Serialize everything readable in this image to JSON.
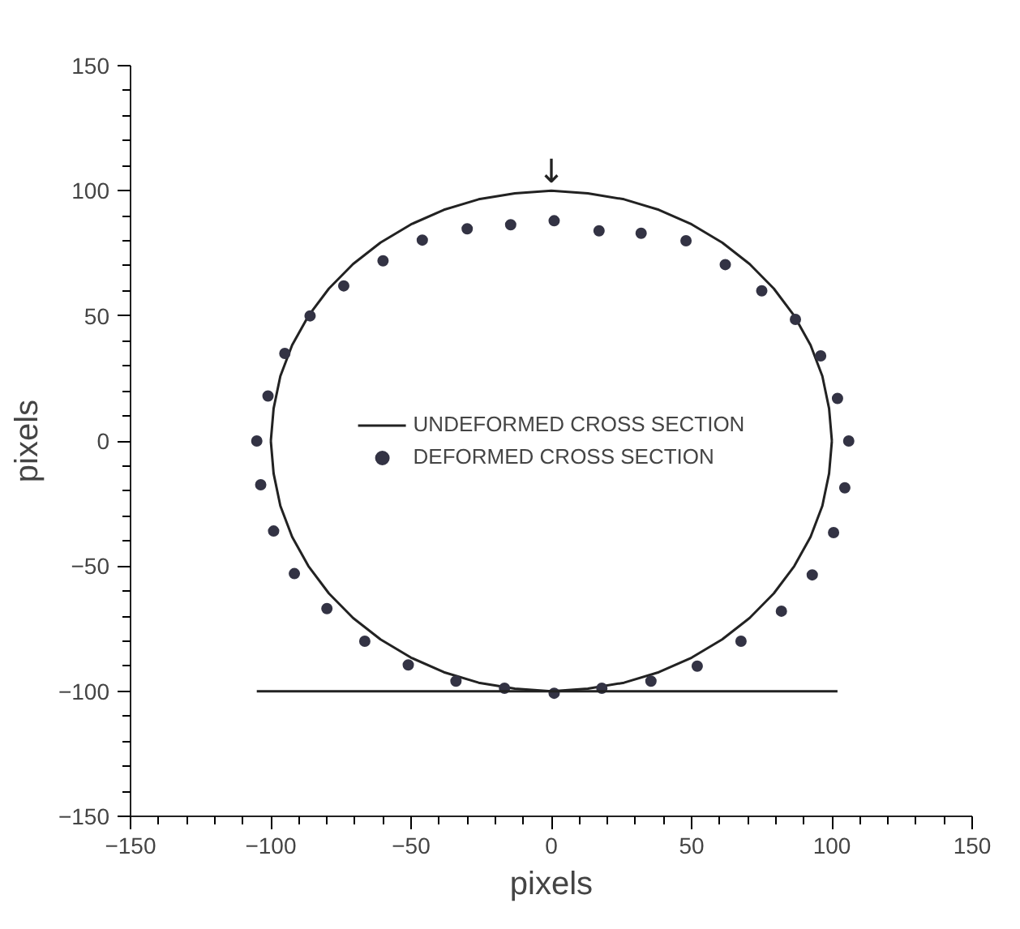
{
  "chart_data": {
    "type": "scatter",
    "xlabel": "pixels",
    "ylabel": "pixels",
    "xlim": [
      -150,
      150
    ],
    "ylim": [
      -150,
      150
    ],
    "xticks": [
      -150,
      {
        "value": -140,
        "label": null
      },
      {
        "value": -130,
        "label": null
      },
      {
        "value": -120,
        "label": null
      },
      {
        "value": -110,
        "label": null
      },
      -100,
      {
        "value": -90,
        "label": null
      },
      {
        "value": -80,
        "label": null
      },
      {
        "value": -70,
        "label": null
      },
      {
        "value": -60,
        "label": null
      },
      -50,
      {
        "value": -40,
        "label": null
      },
      {
        "value": -30,
        "label": null
      },
      {
        "value": -20,
        "label": null
      },
      {
        "value": -10,
        "label": null
      },
      0,
      {
        "value": 10,
        "label": null
      },
      {
        "value": 20,
        "label": null
      },
      {
        "value": 30,
        "label": null
      },
      {
        "value": 40,
        "label": null
      },
      50,
      {
        "value": 60,
        "label": null
      },
      {
        "value": 70,
        "label": null
      },
      {
        "value": 80,
        "label": null
      },
      {
        "value": 90,
        "label": null
      },
      100,
      {
        "value": 110,
        "label": null
      },
      {
        "value": 120,
        "label": null
      },
      {
        "value": 130,
        "label": null
      },
      {
        "value": 140,
        "label": null
      },
      150
    ],
    "yticks": [
      -150,
      {
        "value": -140,
        "label": null
      },
      {
        "value": -130,
        "label": null
      },
      {
        "value": -120,
        "label": null
      },
      {
        "value": -110,
        "label": null
      },
      -100,
      {
        "value": -90,
        "label": null
      },
      {
        "value": -80,
        "label": null
      },
      {
        "value": -70,
        "label": null
      },
      {
        "value": -60,
        "label": null
      },
      -50,
      {
        "value": -40,
        "label": null
      },
      {
        "value": -30,
        "label": null
      },
      {
        "value": -20,
        "label": null
      },
      {
        "value": -10,
        "label": null
      },
      0,
      {
        "value": 10,
        "label": null
      },
      {
        "value": 20,
        "label": null
      },
      {
        "value": 30,
        "label": null
      },
      {
        "value": 40,
        "label": null
      },
      50,
      {
        "value": 60,
        "label": null
      },
      {
        "value": 70,
        "label": null
      },
      {
        "value": 80,
        "label": null
      },
      {
        "value": 90,
        "label": null
      },
      100,
      {
        "value": 110,
        "label": null
      },
      {
        "value": 120,
        "label": null
      },
      {
        "value": 130,
        "label": null
      },
      {
        "value": 140,
        "label": null
      },
      150
    ],
    "grid": false,
    "legend": "center",
    "marker": "circle",
    "annotations": [
      {
        "text": "↓",
        "x": 0,
        "y": 100
      }
    ],
    "series": [
      {
        "name": "UNDEFORMED CROSS SECTION",
        "type": "line",
        "marker": "none",
        "line_style": "solid",
        "color": "#222222",
        "x": [
          -100,
          -99,
          -96.6,
          -92.4,
          -86.6,
          -79.3,
          -70.7,
          -60.9,
          -50,
          -38.3,
          -25.9,
          -13,
          0,
          13,
          25.9,
          38.3,
          50,
          60.9,
          70.7,
          79.3,
          86.6,
          92.4,
          96.6,
          99,
          100,
          null,
          100,
          99,
          96.6,
          92.4,
          86.6,
          79.3,
          70.7,
          60.9,
          50,
          38.3,
          25.9,
          13,
          0,
          -13,
          -25.9,
          -38.3,
          -50,
          -60.9,
          -70.7,
          -79.3,
          -86.6,
          -92.4,
          -96.6,
          -99,
          -100
        ],
        "values": [
          0,
          13,
          25.9,
          38.3,
          50,
          60.9,
          70.7,
          79.3,
          86.6,
          92.4,
          96.6,
          99,
          100,
          99,
          96.6,
          92.4,
          86.6,
          79.3,
          70.7,
          60.9,
          50,
          38.3,
          25.9,
          13,
          0,
          null,
          0,
          -13,
          -25.9,
          -38.3,
          -50,
          -60.9,
          -70.7,
          -79.3,
          -86.6,
          -92.4,
          -96.6,
          -99,
          -100,
          -99,
          -96.6,
          -92.4,
          -86.6,
          -79.3,
          -70.7,
          -60.9,
          -50,
          -38.3,
          -25.9,
          -13,
          0
        ]
      },
      {
        "name": "DEFORMED CROSS SECTION",
        "color": "#333344",
        "x": [
          106,
          102,
          96,
          87,
          75,
          62,
          48,
          32,
          17,
          1,
          -14.5,
          -30,
          -46,
          -60,
          -74,
          -86,
          -95,
          -101,
          -105,
          -103.6,
          -99,
          -91.6,
          -80,
          -66.5,
          -51,
          -34,
          -16.7,
          1,
          18,
          35.5,
          52,
          67.6,
          82,
          93,
          100.6,
          104.6
        ],
        "values": [
          0,
          17,
          34,
          48.6,
          60,
          70.5,
          80,
          83,
          84,
          88,
          86.4,
          84.8,
          80.3,
          72,
          62,
          50,
          35,
          18,
          0,
          -17.5,
          -36,
          -53,
          -67,
          -80,
          -89.5,
          -96,
          -98.8,
          -100.8,
          -98.8,
          -96,
          -90,
          -80,
          -68,
          -53.5,
          -36.6,
          -18.7
        ]
      },
      {
        "type": "line",
        "marker": "none",
        "line_style": "solid",
        "color": "#222222",
        "x": [
          -105,
          102
        ],
        "values": [
          -100,
          -100
        ]
      }
    ]
  }
}
